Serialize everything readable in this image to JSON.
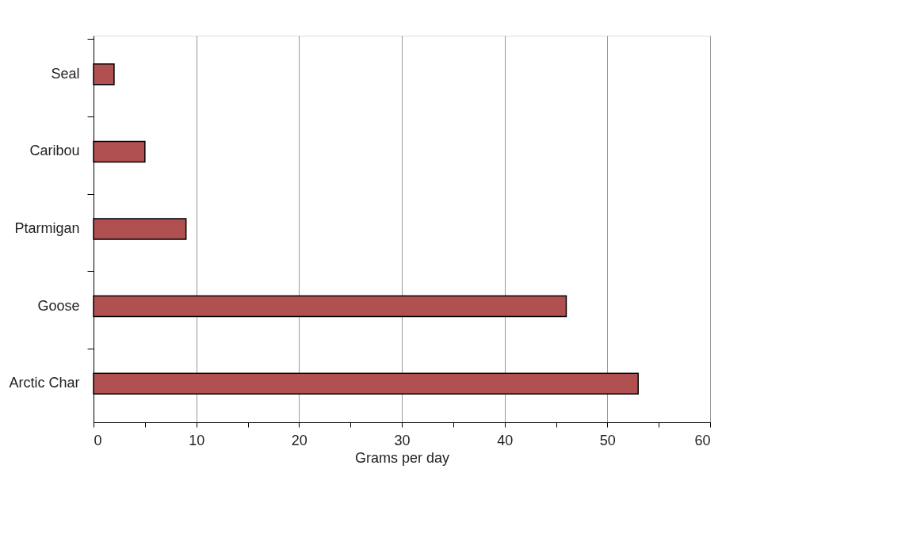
{
  "chart_data": {
    "type": "bar",
    "orientation": "horizontal",
    "xlabel": "Grams per day",
    "categories": [
      "Seal",
      "Caribou",
      "Ptarmigan",
      "Goose",
      "Arctic Char"
    ],
    "values": [
      2,
      5,
      9,
      46,
      53
    ],
    "color": "#b05050",
    "xlim": [
      0,
      60
    ],
    "xticks": [
      0,
      {
        "value": 5,
        "label": null
      },
      10,
      {
        "value": 15,
        "label": null
      },
      20,
      {
        "value": 25,
        "label": null
      },
      30,
      {
        "value": 35,
        "label": null
      },
      40,
      {
        "value": 45,
        "label": null
      },
      50,
      {
        "value": 55,
        "label": null
      },
      60
    ],
    "grid": "x"
  }
}
